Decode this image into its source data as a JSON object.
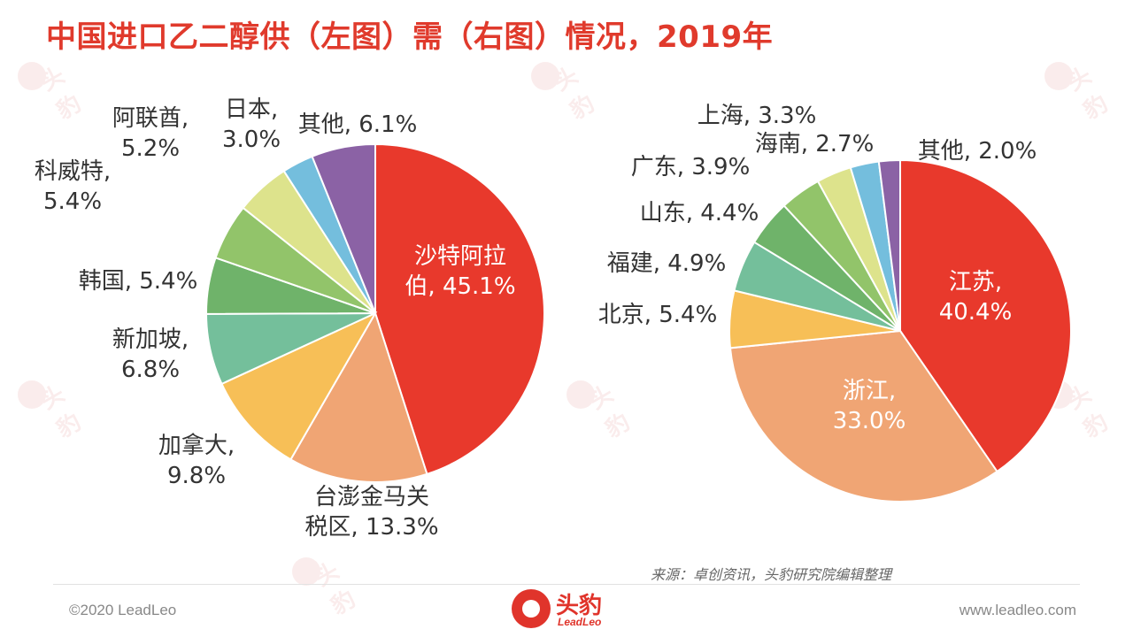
{
  "title": "中国进口乙二醇供（左图）需（右图）情况，2019年",
  "source": "来源：卓创资讯，头豹研究院编辑整理",
  "footer": {
    "copyright": "©2020 LeadLeo",
    "website": "www.leadleo.com",
    "logo_cn": "头豹",
    "logo_en": "LeadLeo"
  },
  "chart_data": [
    {
      "type": "pie",
      "slices": [
        {
          "label_lines": [
            "沙特阿拉",
            "伯, 45.1%"
          ],
          "value": 45.1,
          "color": "#e8392c",
          "text_color": "#ffffff"
        },
        {
          "label_lines": [
            "台澎金马关",
            "税区, 13.3%"
          ],
          "value": 13.3,
          "color": "#f0a574",
          "text_color": "#333333"
        },
        {
          "label_lines": [
            "加拿大,",
            "9.8%"
          ],
          "value": 9.8,
          "color": "#f7bf57",
          "text_color": "#333333"
        },
        {
          "label_lines": [
            "新加坡,",
            "6.8%"
          ],
          "value": 6.8,
          "color": "#74bf9b",
          "text_color": "#333333"
        },
        {
          "label_lines": [
            "韩国, 5.4%"
          ],
          "value": 5.4,
          "color": "#6fb36a",
          "text_color": "#333333"
        },
        {
          "label_lines": [
            "科威特,",
            "5.4%"
          ],
          "value": 5.4,
          "color": "#92c46a",
          "text_color": "#333333"
        },
        {
          "label_lines": [
            "阿联酋,",
            "5.2%"
          ],
          "value": 5.2,
          "color": "#dde38c",
          "text_color": "#333333"
        },
        {
          "label_lines": [
            "日本,",
            "3.0%"
          ],
          "value": 3.0,
          "color": "#74bedd",
          "text_color": "#333333"
        },
        {
          "label_lines": [
            "其他, 6.1%"
          ],
          "value": 6.1,
          "color": "#8b62a5",
          "text_color": "#333333"
        }
      ]
    },
    {
      "type": "pie",
      "slices": [
        {
          "label_lines": [
            "江苏,",
            "40.4%"
          ],
          "value": 40.4,
          "color": "#e8392c",
          "text_color": "#ffffff"
        },
        {
          "label_lines": [
            "浙江,",
            "33.0%"
          ],
          "value": 33.0,
          "color": "#f0a574",
          "text_color": "#ffffff"
        },
        {
          "label_lines": [
            "北京, 5.4%"
          ],
          "value": 5.4,
          "color": "#f7bf57",
          "text_color": "#333333"
        },
        {
          "label_lines": [
            "福建, 4.9%"
          ],
          "value": 4.9,
          "color": "#74bf9b",
          "text_color": "#333333"
        },
        {
          "label_lines": [
            "山东, 4.4%"
          ],
          "value": 4.4,
          "color": "#6fb36a",
          "text_color": "#333333"
        },
        {
          "label_lines": [
            "广东, 3.9%"
          ],
          "value": 3.9,
          "color": "#92c46a",
          "text_color": "#333333"
        },
        {
          "label_lines": [
            "上海, 3.3%"
          ],
          "value": 3.3,
          "color": "#dde38c",
          "text_color": "#333333"
        },
        {
          "label_lines": [
            "海南, 2.7%"
          ],
          "value": 2.7,
          "color": "#74bedd",
          "text_color": "#333333"
        },
        {
          "label_lines": [
            "其他, 2.0%"
          ],
          "value": 2.0,
          "color": "#8b62a5",
          "text_color": "#333333"
        }
      ]
    }
  ]
}
